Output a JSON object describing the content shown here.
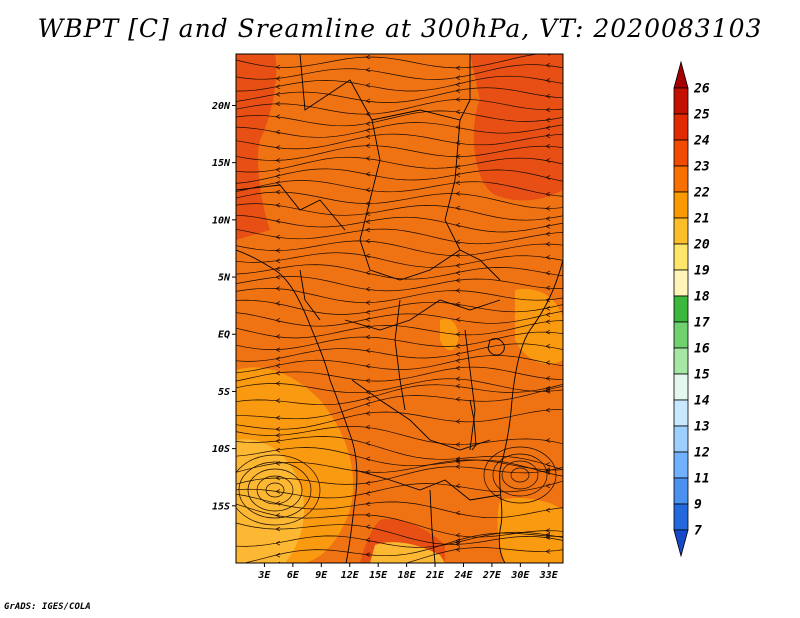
{
  "title": "WBPT [C] and Sreamline at 300hPa, VT: 2020083103",
  "credit": "GrADS: IGES/COLA",
  "map": {
    "lat_ticks": [
      "20N",
      "15N",
      "10N",
      "5N",
      "EQ",
      "5S",
      "10S",
      "15S"
    ],
    "lon_ticks": [
      "3E",
      "6E",
      "9E",
      "12E",
      "15E",
      "18E",
      "21E",
      "24E",
      "27E",
      "30E",
      "33E"
    ],
    "lat_values": [
      20,
      15,
      10,
      5,
      0,
      -5,
      -10,
      -15
    ],
    "lon_values": [
      3,
      6,
      9,
      12,
      15,
      18,
      21,
      24,
      27,
      30,
      33
    ],
    "lat_range": [
      -20,
      24.5
    ],
    "lon_range": [
      0,
      34.5
    ]
  },
  "colorbar": {
    "labels": [
      "26",
      "25",
      "24",
      "23",
      "22",
      "21",
      "20",
      "19",
      "18",
      "17",
      "16",
      "15",
      "14",
      "13",
      "12",
      "11",
      "9",
      "7"
    ],
    "colors": [
      "#a50000",
      "#c31000",
      "#e22a00",
      "#f04b00",
      "#f87000",
      "#fb9a00",
      "#fcbf2a",
      "#fde66a",
      "#fff5b8",
      "#3cb83c",
      "#6fd26f",
      "#a6e7a6",
      "#e4f8ef",
      "#c8e8ff",
      "#9ed0ff",
      "#70b2ff",
      "#4b92f0",
      "#2468de",
      "#1449c8"
    ]
  },
  "colors": {
    "field_main": "#f07313",
    "field_warm": "#e84f14",
    "field_cool": "#fa9a10",
    "field_yellow": "#fcb733",
    "streamline": "#1a0a00",
    "border": "#000000"
  }
}
